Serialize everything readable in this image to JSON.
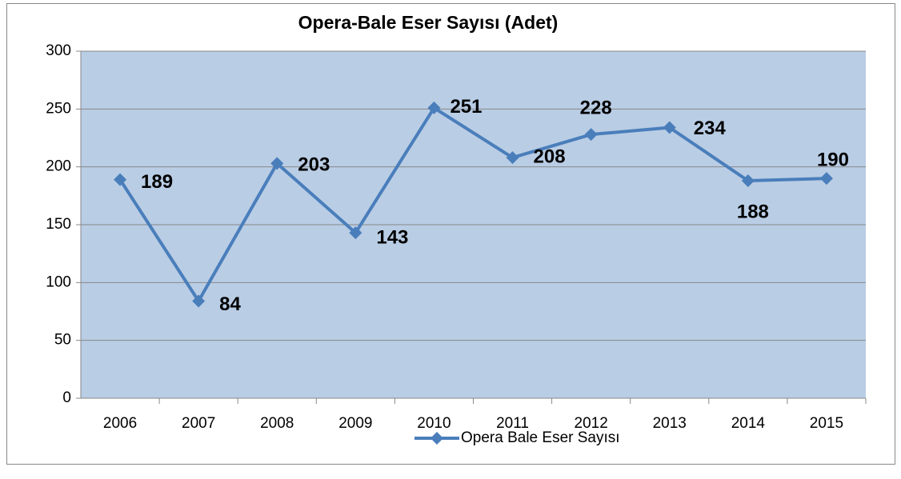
{
  "chart_data": {
    "type": "line",
    "title": "Opera-Bale Eser Sayısı (Adet)",
    "categories": [
      "2006",
      "2007",
      "2008",
      "2009",
      "2010",
      "2011",
      "2012",
      "2013",
      "2014",
      "2015"
    ],
    "series": [
      {
        "name": "Opera Bale Eser Sayısı",
        "color": "#4a7ebb",
        "values": [
          189,
          84,
          203,
          143,
          251,
          208,
          228,
          234,
          188,
          190
        ]
      }
    ],
    "ylim": [
      0,
      300
    ],
    "yticks": [
      0,
      50,
      100,
      150,
      200,
      250,
      300
    ],
    "grid": true,
    "legend": "bottom",
    "plot_background": "#b9cde5"
  }
}
